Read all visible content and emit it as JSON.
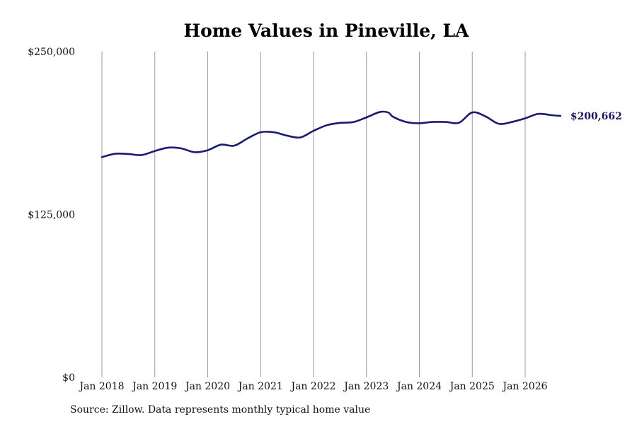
{
  "chart_data": {
    "type": "line",
    "title": "Home Values in Pineville, LA",
    "source": "Source: Zillow. Data represents monthly typical home value",
    "end_label": "$200,662",
    "line_color": "#1a1a6e",
    "grid_color": "#9a9a9a",
    "y_ticks": [
      {
        "value": 0,
        "label": "$0"
      },
      {
        "value": 125000,
        "label": "$125,000"
      },
      {
        "value": 250000,
        "label": "$250,000"
      }
    ],
    "x_ticks": [
      {
        "year": 2018,
        "label": "Jan 2018"
      },
      {
        "year": 2019,
        "label": "Jan 2019"
      },
      {
        "year": 2020,
        "label": "Jan 2020"
      },
      {
        "year": 2021,
        "label": "Jan 2021"
      },
      {
        "year": 2022,
        "label": "Jan 2022"
      },
      {
        "year": 2023,
        "label": "Jan 2023"
      },
      {
        "year": 2024,
        "label": "Jan 2024"
      },
      {
        "year": 2025,
        "label": "Jan 2025"
      },
      {
        "year": 2026,
        "label": "Jan 2026"
      }
    ],
    "ylim": [
      0,
      250000
    ],
    "xlim": [
      "2018-01",
      "2026-09"
    ],
    "grid": "vertical",
    "series": [
      {
        "x": [
          "2018-01",
          "2018-04",
          "2018-07",
          "2018-10",
          "2019-01",
          "2019-04",
          "2019-07",
          "2019-10",
          "2020-01",
          "2020-04",
          "2020-07",
          "2020-10",
          "2021-01",
          "2021-04",
          "2021-07",
          "2021-10",
          "2022-01",
          "2022-04",
          "2022-07",
          "2022-10",
          "2023-01",
          "2023-04",
          "2023-06",
          "2023-07",
          "2023-10",
          "2024-01",
          "2024-04",
          "2024-07",
          "2024-10",
          "2025-01",
          "2025-04",
          "2025-07",
          "2025-10",
          "2026-01",
          "2026-04",
          "2026-07",
          "2026-09"
        ],
        "values": [
          169000,
          171600,
          171400,
          170600,
          173700,
          176300,
          175700,
          172800,
          174300,
          178600,
          177800,
          183300,
          188100,
          188100,
          185500,
          184100,
          189200,
          193500,
          195300,
          195900,
          199500,
          203600,
          203200,
          200000,
          196000,
          195000,
          196000,
          196000,
          195400,
          203300,
          200300,
          194600,
          196000,
          198800,
          202200,
          201200,
          200662
        ]
      }
    ]
  }
}
